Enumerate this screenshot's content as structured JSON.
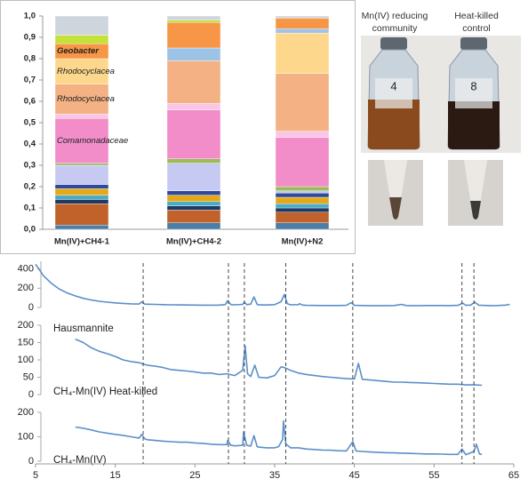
{
  "chart_data": [
    {
      "type": "bar",
      "categories": [
        "Mn(IV)+CH4-1",
        "Mn(IV)+CH4-2",
        "Mn(IV)+N2"
      ],
      "ylim": [
        0,
        1
      ],
      "yticks": [
        {
          "value": 0,
          "label": "0,0"
        },
        {
          "value": 0.1,
          "label": "0,1"
        },
        {
          "value": 0.2,
          "label": "0,2"
        },
        {
          "value": 0.3,
          "label": "0,3"
        },
        {
          "value": 0.4,
          "label": "0,4"
        },
        {
          "value": 0.5,
          "label": "0,5"
        },
        {
          "value": 0.6,
          "label": "0,6"
        },
        {
          "value": 0.7,
          "label": "0,7"
        },
        {
          "value": 0.8,
          "label": "0,8"
        },
        {
          "value": 0.9,
          "label": "0,9"
        },
        {
          "value": 1,
          "label": "1,0"
        }
      ],
      "series": [
        {
          "color": "#4a7ea8",
          "values": [
            0.02,
            0.03,
            0.03
          ]
        },
        {
          "color": "#c0622a",
          "values": [
            0.1,
            0.06,
            0.05
          ]
        },
        {
          "color": "#1f3864",
          "values": [
            0.02,
            0.02,
            0.02
          ]
        },
        {
          "color": "#4bacc6",
          "values": [
            0.02,
            0.02,
            0.02
          ]
        },
        {
          "color": "#e6a817",
          "values": [
            0.03,
            0.03,
            0.03
          ]
        },
        {
          "color": "#2e4a9a",
          "values": [
            0.02,
            0.02,
            0.02
          ]
        },
        {
          "color": "#c6c9f2",
          "values": [
            0.09,
            0.13,
            0.01
          ]
        },
        {
          "color": "#9bbb59",
          "values": [
            0.01,
            0.02,
            0.02
          ]
        },
        {
          "name": "Comamonadaceae",
          "color": "#f28dc9",
          "values": [
            0.21,
            0.23,
            0.23
          ]
        },
        {
          "color": "#f9c6e6",
          "values": [
            0.02,
            0.03,
            0.03
          ]
        },
        {
          "name": "Rhodocyclacea",
          "color": "#f4b183",
          "values": [
            0.14,
            0.2,
            0.27
          ]
        },
        {
          "name": "Rhodocyclacea",
          "color": "#fdd88c",
          "values": [
            0.12,
            0,
            0.19
          ]
        },
        {
          "color": "#9dc3e6",
          "values": [
            0,
            0.06,
            0.02
          ]
        },
        {
          "name": "Geobacter",
          "color": "#f79646",
          "values": [
            0.07,
            0.12,
            0.05
          ]
        },
        {
          "color": "#c4e23a",
          "values": [
            0.04,
            0.01,
            0
          ]
        },
        {
          "color": "#cfd5dc",
          "values": [
            0.09,
            0.02,
            0.01
          ]
        }
      ]
    },
    {
      "type": "line",
      "xlim": [
        5,
        65
      ],
      "xticks": [
        5,
        15,
        25,
        35,
        45,
        55,
        65
      ],
      "reference_lines": [
        18.5,
        29.2,
        31.2,
        36.4,
        44.8,
        58.5,
        60.0
      ],
      "panels": [
        {
          "name": "Hausmannite",
          "color": "#5b8fc9",
          "ylim": [
            0,
            480
          ],
          "yticks": [
            0,
            200,
            400
          ],
          "x": [
            5,
            6,
            7,
            8,
            9,
            10,
            11,
            12,
            13,
            14,
            15,
            16,
            17,
            18,
            18.3,
            18.7,
            19,
            20,
            21,
            22,
            23,
            24,
            25,
            26,
            27,
            28,
            28.8,
            29.1,
            29.5,
            30,
            31,
            31.2,
            31.5,
            32,
            32.4,
            32.8,
            33,
            34,
            35,
            35.8,
            36.2,
            36.6,
            37,
            38,
            38.1,
            38.5,
            39,
            40,
            41,
            42,
            43,
            44,
            44.6,
            45,
            46,
            47,
            48,
            49,
            50,
            50.9,
            51.5,
            52,
            53,
            54,
            55,
            56,
            57,
            58,
            58.6,
            59,
            59.6,
            60.1,
            60.6,
            61,
            62,
            63,
            64,
            64.5
          ],
          "values": [
            450,
            330,
            250,
            190,
            150,
            120,
            95,
            78,
            65,
            55,
            48,
            42,
            38,
            36,
            58,
            35,
            34,
            32,
            30,
            28,
            27,
            26,
            25,
            24,
            24,
            25,
            30,
            70,
            30,
            28,
            32,
            55,
            30,
            35,
            110,
            32,
            27,
            26,
            30,
            60,
            135,
            40,
            28,
            30,
            40,
            25,
            22,
            21,
            20,
            20,
            20,
            22,
            50,
            22,
            20,
            19,
            19,
            19,
            20,
            32,
            20,
            19,
            19,
            20,
            20,
            20,
            19,
            22,
            45,
            22,
            25,
            55,
            24,
            22,
            19,
            20,
            25,
            32
          ]
        },
        {
          "name": "CH₄-Mn(IV) Heat-killed",
          "color": "#5b8fc9",
          "ylim": [
            0,
            200
          ],
          "yticks": [
            0,
            50,
            100,
            150,
            200
          ],
          "x": [
            10,
            11,
            12,
            13,
            14,
            15,
            16,
            17,
            18,
            19,
            20,
            21,
            22,
            23,
            24,
            25,
            26,
            27,
            28,
            29,
            30,
            31,
            31.3,
            31.6,
            32,
            32.5,
            33,
            34,
            35,
            35.8,
            36.2,
            37,
            38,
            39,
            40,
            41,
            42,
            43,
            44,
            45,
            45.5,
            46,
            47,
            48,
            49,
            50,
            51,
            52,
            53,
            54,
            55,
            56,
            57,
            58,
            59,
            60,
            61
          ],
          "values": [
            160,
            150,
            135,
            125,
            118,
            110,
            100,
            95,
            92,
            85,
            82,
            78,
            72,
            70,
            68,
            65,
            62,
            62,
            58,
            60,
            55,
            70,
            140,
            60,
            52,
            85,
            50,
            48,
            55,
            80,
            78,
            70,
            62,
            58,
            55,
            52,
            50,
            48,
            46,
            45,
            90,
            44,
            42,
            40,
            38,
            36,
            36,
            35,
            34,
            33,
            32,
            31,
            30,
            30,
            28,
            28,
            27
          ]
        },
        {
          "name": "CH₄-Mn(IV)",
          "color": "#5b8fc9",
          "ylim": [
            0,
            200
          ],
          "yticks": [
            0,
            100,
            200
          ],
          "x": [
            10,
            11,
            12,
            13,
            14,
            15,
            16,
            17,
            18,
            18.3,
            18.7,
            19,
            20,
            21,
            22,
            23,
            24,
            25,
            26,
            27,
            28,
            29,
            29.1,
            29.5,
            30,
            31,
            31.1,
            31.5,
            32,
            32.4,
            32.8,
            33,
            34,
            35,
            35.5,
            36,
            36.1,
            36.4,
            37,
            38,
            39,
            40,
            41,
            42,
            43,
            44,
            44.8,
            45.2,
            46,
            47,
            48,
            49,
            50,
            51,
            52,
            53,
            54,
            55,
            56,
            57,
            58,
            58.5,
            59,
            60,
            60.3,
            60.7,
            61
          ],
          "values": [
            140,
            135,
            128,
            120,
            115,
            110,
            106,
            100,
            95,
            110,
            92,
            88,
            85,
            82,
            80,
            78,
            78,
            75,
            73,
            70,
            68,
            68,
            85,
            65,
            63,
            65,
            120,
            65,
            62,
            105,
            60,
            58,
            55,
            55,
            60,
            90,
            165,
            70,
            55,
            55,
            50,
            48,
            46,
            45,
            43,
            42,
            80,
            42,
            40,
            38,
            36,
            35,
            34,
            33,
            32,
            31,
            30,
            30,
            29,
            28,
            28,
            50,
            27,
            40,
            70,
            30,
            28
          ]
        }
      ]
    }
  ],
  "photos": [
    {
      "caption": [
        "Mn(IV) reducing",
        "community"
      ],
      "bottle_label": "4"
    },
    {
      "caption": [
        "Heat-killed",
        "control"
      ],
      "bottle_label": "8"
    }
  ]
}
